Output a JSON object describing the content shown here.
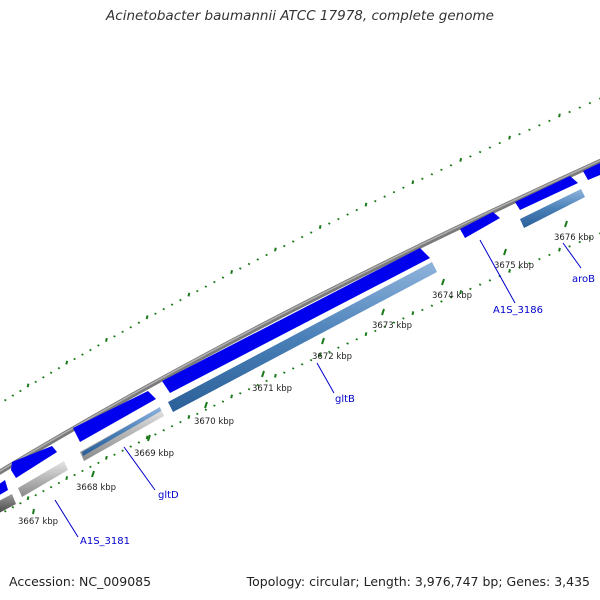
{
  "title": "Acinetobacter baumannii ATCC 17978, complete genome",
  "footer": {
    "accession": "Accession: NC_009085",
    "summary": "Topology: circular; Length: 3,976,747 bp; Genes: 3,435"
  },
  "colors": {
    "gene_forward": "#0000ee",
    "gene_reverse": "#4a80b8",
    "backbone": "#8a8a8a",
    "tick": "#1a7a1a",
    "label": "#0000cc"
  },
  "ticks": [
    {
      "label": "3667 kbp"
    },
    {
      "label": "3668 kbp"
    },
    {
      "label": "3669 kbp"
    },
    {
      "label": "3670 kbp"
    },
    {
      "label": "3671 kbp"
    },
    {
      "label": "3672 kbp"
    },
    {
      "label": "3673 kbp"
    },
    {
      "label": "3674 kbp"
    },
    {
      "label": "3675 kbp"
    },
    {
      "label": "3676 kbp"
    }
  ],
  "genes": [
    {
      "name": "A1S_3181"
    },
    {
      "name": "gltD"
    },
    {
      "name": "gltB"
    },
    {
      "name": "A1S_3186"
    },
    {
      "name": "aroB"
    }
  ]
}
